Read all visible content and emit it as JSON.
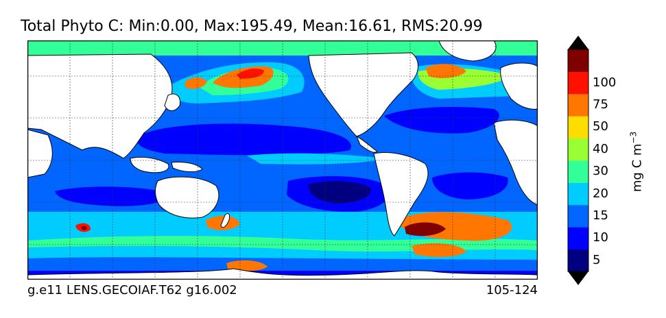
{
  "title": "Total Phyto C: Min:0.00, Max:195.49, Mean:16.61, RMS:20.99",
  "footer_left": "g.e11 LENS.GECOIAF.T62 g16.002",
  "footer_right": "105-124",
  "colorbar": {
    "units_label": "mg C m",
    "units_exponent": "−3",
    "levels": [
      0,
      5,
      10,
      15,
      20,
      30,
      40,
      50,
      75,
      100
    ],
    "tick_labels": [
      "5",
      "10",
      "15",
      "20",
      "30",
      "40",
      "50",
      "75",
      "100"
    ],
    "colors": [
      "#000080",
      "#0000ff",
      "#0066ff",
      "#00ccff",
      "#33ff99",
      "#99ff33",
      "#ffdd00",
      "#ff7700",
      "#ff1100",
      "#800000"
    ],
    "extend": "both"
  },
  "map": {
    "projection": "global, Pacific-centered",
    "land_color": "#ffffff",
    "coastline_color": "#000000",
    "gridlines": "dotted"
  }
}
